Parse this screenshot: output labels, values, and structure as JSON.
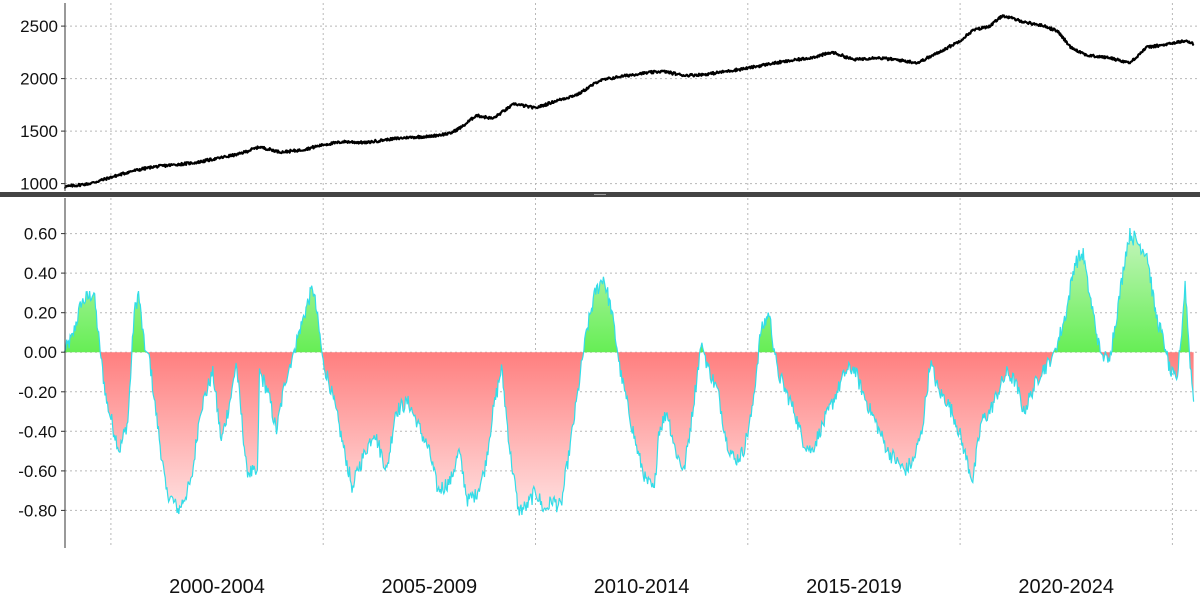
{
  "chart_data": [
    {
      "type": "line",
      "title": "",
      "xlabel": "",
      "ylabel": "",
      "ylim": [
        930,
        2720
      ],
      "y_ticks": [
        "1000",
        "1500",
        "2000",
        "2500"
      ],
      "grid": true,
      "series": [
        {
          "color": "#000000",
          "x": [
            1998.9,
            1999.5,
            2000.0,
            2000.5,
            2001.0,
            2001.5,
            2002.0,
            2002.5,
            2003.0,
            2003.5,
            2004.0,
            2004.5,
            2005.0,
            2005.5,
            2006.0,
            2006.5,
            2007.0,
            2007.5,
            2008.0,
            2008.3,
            2008.6,
            2009.0,
            2009.5,
            2010.0,
            2010.5,
            2011.0,
            2011.5,
            2012.0,
            2012.5,
            2013.0,
            2013.5,
            2014.0,
            2014.5,
            2015.0,
            2015.5,
            2016.0,
            2016.5,
            2017.0,
            2017.5,
            2018.0,
            2018.5,
            2019.0,
            2019.5,
            2020.0,
            2020.3,
            2020.7,
            2021.0,
            2021.5,
            2022.0,
            2022.3,
            2022.6,
            2023.0,
            2023.5,
            2024.0,
            2024.4,
            2024.8,
            2025.3,
            2025.5
          ],
          "values": [
            970,
            1000,
            1060,
            1120,
            1160,
            1180,
            1200,
            1240,
            1280,
            1350,
            1300,
            1320,
            1370,
            1400,
            1390,
            1420,
            1440,
            1450,
            1480,
            1550,
            1650,
            1620,
            1760,
            1720,
            1790,
            1850,
            1980,
            2020,
            2050,
            2070,
            2030,
            2040,
            2070,
            2100,
            2140,
            2170,
            2200,
            2250,
            2180,
            2200,
            2180,
            2150,
            2250,
            2360,
            2460,
            2500,
            2600,
            2540,
            2500,
            2450,
            2300,
            2220,
            2200,
            2150,
            2300,
            2320,
            2360,
            2330
          ]
        }
      ]
    },
    {
      "type": "area",
      "title": "",
      "xlabel": "",
      "ylabel": "",
      "ylim": [
        -0.99,
        0.78
      ],
      "y_ticks": [
        "0.60",
        "0.40",
        "0.20",
        "0.00",
        "-0.20",
        "-0.40",
        "-0.60",
        "-0.80"
      ],
      "grid": true,
      "positive_color": "#66ee55",
      "negative_color": "#ff7f7f",
      "outline_color": "#33dde8",
      "x_categories": [
        "2000-2004",
        "2005-2009",
        "2010-2014",
        "2015-2019",
        "2020-2024"
      ],
      "series": [
        {
          "x": [
            1998.9,
            1999.1,
            1999.3,
            1999.6,
            1999.75,
            1999.9,
            2000.2,
            2000.4,
            2000.55,
            2000.65,
            2000.8,
            2000.9,
            2001.0,
            2001.3,
            2001.6,
            2001.9,
            2002.1,
            2002.4,
            2002.6,
            2002.85,
            2002.95,
            2003.2,
            2003.45,
            2003.5,
            2003.7,
            2003.9,
            2004.1,
            2004.3,
            2004.5,
            2004.75,
            2004.85,
            2005.0,
            2005.2,
            2005.5,
            2005.7,
            2005.8,
            2006.0,
            2006.2,
            2006.5,
            2006.7,
            2007.0,
            2007.2,
            2007.5,
            2007.7,
            2008.0,
            2008.2,
            2008.4,
            2008.6,
            2008.8,
            2009.0,
            2009.2,
            2009.4,
            2009.6,
            2009.8,
            2010.0,
            2010.2,
            2010.4,
            2010.6,
            2010.8,
            2011.0,
            2011.2,
            2011.4,
            2011.6,
            2011.8,
            2012.0,
            2012.2,
            2012.4,
            2012.6,
            2012.8,
            2012.9,
            2013.1,
            2013.3,
            2013.5,
            2013.7,
            2013.9,
            2014.1,
            2014.3,
            2014.5,
            2014.7,
            2014.9,
            2015.1,
            2015.3,
            2015.5,
            2015.7,
            2015.9,
            2016.1,
            2016.3,
            2016.5,
            2016.7,
            2016.9,
            2017.1,
            2017.3,
            2017.5,
            2017.7,
            2017.9,
            2018.1,
            2018.3,
            2018.5,
            2018.7,
            2018.9,
            2019.1,
            2019.3,
            2019.5,
            2019.7,
            2019.9,
            2020.1,
            2020.3,
            2020.5,
            2020.7,
            2020.9,
            2021.1,
            2021.3,
            2021.5,
            2021.7,
            2021.9,
            2022.1,
            2022.3,
            2022.5,
            2022.7,
            2022.9,
            2023.0,
            2023.3,
            2023.5,
            2023.7,
            2023.9,
            2024.0,
            2024.2,
            2024.4,
            2024.6,
            2024.8,
            2024.95,
            2025.1,
            2025.2,
            2025.3,
            2025.4,
            2025.5
          ],
          "values": [
            0.0,
            0.08,
            0.25,
            0.3,
            0.0,
            -0.25,
            -0.5,
            -0.35,
            0.2,
            0.3,
            0.01,
            -0.01,
            -0.2,
            -0.7,
            -0.8,
            -0.65,
            -0.3,
            -0.1,
            -0.45,
            -0.2,
            -0.05,
            -0.6,
            -0.62,
            -0.1,
            -0.2,
            -0.4,
            -0.15,
            0.0,
            0.15,
            0.33,
            0.2,
            -0.05,
            -0.2,
            -0.5,
            -0.7,
            -0.6,
            -0.5,
            -0.4,
            -0.6,
            -0.3,
            -0.25,
            -0.35,
            -0.5,
            -0.7,
            -0.65,
            -0.5,
            -0.75,
            -0.72,
            -0.6,
            -0.3,
            -0.08,
            -0.5,
            -0.8,
            -0.78,
            -0.7,
            -0.8,
            -0.75,
            -0.78,
            -0.5,
            -0.2,
            0.1,
            0.3,
            0.38,
            0.2,
            -0.1,
            -0.3,
            -0.5,
            -0.65,
            -0.7,
            -0.4,
            -0.3,
            -0.5,
            -0.6,
            -0.3,
            0.05,
            -0.1,
            -0.2,
            -0.45,
            -0.55,
            -0.5,
            -0.3,
            0.1,
            0.2,
            -0.1,
            -0.2,
            -0.3,
            -0.45,
            -0.5,
            -0.4,
            -0.3,
            -0.2,
            -0.1,
            -0.08,
            -0.2,
            -0.3,
            -0.4,
            -0.5,
            -0.55,
            -0.6,
            -0.55,
            -0.4,
            -0.05,
            -0.2,
            -0.25,
            -0.35,
            -0.5,
            -0.65,
            -0.35,
            -0.3,
            -0.2,
            -0.1,
            -0.15,
            -0.3,
            -0.2,
            -0.1,
            -0.05,
            0.05,
            0.2,
            0.45,
            0.5,
            0.35,
            0.0,
            -0.05,
            0.2,
            0.5,
            0.6,
            0.55,
            0.5,
            0.2,
            0.05,
            -0.1,
            -0.15,
            0.05,
            0.35,
            0.0,
            -0.25
          ]
        }
      ]
    }
  ]
}
